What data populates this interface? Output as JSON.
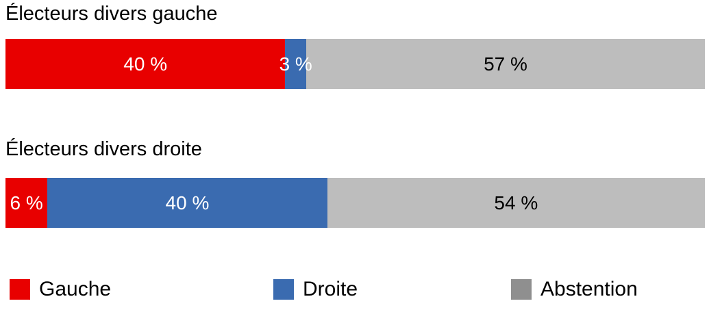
{
  "chart_data": {
    "type": "bar",
    "variant": "horizontal-stacked",
    "unit": "%",
    "xlim": [
      0,
      100
    ],
    "grid": false,
    "legend_position": "bottom",
    "categories": [
      "Électeurs divers gauche",
      "Électeurs divers droite"
    ],
    "series": [
      {
        "name": "Gauche",
        "color": "#e80000",
        "label_color": "#ffffff",
        "values": [
          40,
          6
        ]
      },
      {
        "name": "Droite",
        "color": "#3a6bb0",
        "label_color": "#ffffff",
        "values": [
          3,
          40
        ]
      },
      {
        "name": "Abstention",
        "color": "#bdbdbd",
        "label_color": "#000000",
        "values": [
          57,
          54
        ]
      }
    ],
    "value_labels": [
      [
        "40 %",
        "3 %",
        "57 %"
      ],
      [
        "6 %",
        "40 %",
        "54 %"
      ]
    ]
  },
  "legend": {
    "items": [
      {
        "label": "Gauche",
        "swatch_color": "#e80000"
      },
      {
        "label": "Droite",
        "swatch_color": "#3a6bb0"
      },
      {
        "label": "Abstention",
        "swatch_color": "#8f8f8f"
      }
    ]
  }
}
